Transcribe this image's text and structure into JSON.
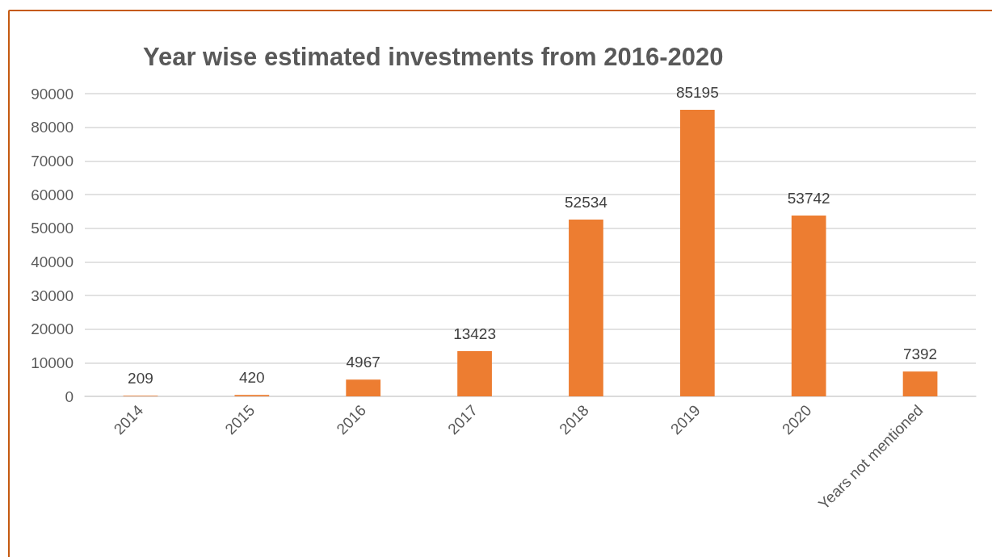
{
  "chart_data": {
    "type": "bar",
    "title": "Year wise estimated investments from 2016-2020",
    "categories": [
      "2014",
      "2015",
      "2016",
      "2017",
      "2018",
      "2019",
      "2020",
      "Years not mentioned"
    ],
    "values": [
      209,
      420,
      4967,
      13423,
      52534,
      85195,
      53742,
      7392
    ],
    "color": "#ed7d31",
    "ylim": [
      0,
      90000
    ],
    "yticks": [
      0,
      10000,
      20000,
      30000,
      40000,
      50000,
      60000,
      70000,
      80000,
      90000
    ],
    "grid": "y",
    "data_labels": true
  }
}
